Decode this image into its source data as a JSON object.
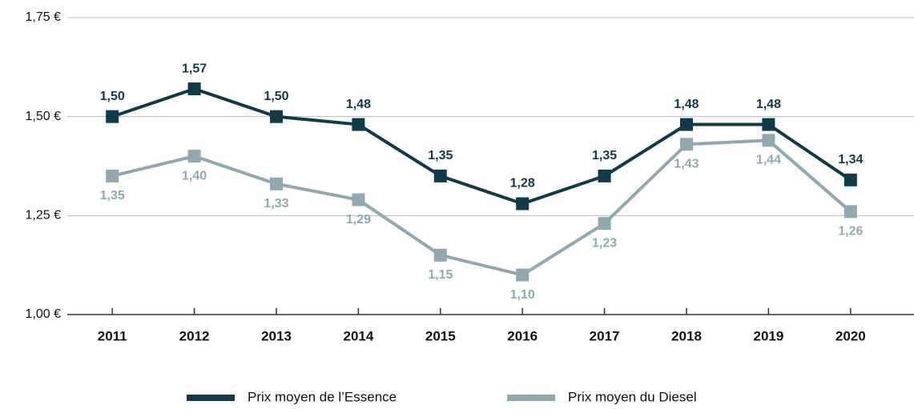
{
  "chart_data": {
    "type": "line",
    "categories": [
      "2011",
      "2012",
      "2013",
      "2014",
      "2015",
      "2016",
      "2017",
      "2018",
      "2019",
      "2020"
    ],
    "series": [
      {
        "name": "Prix moyen de l’Essence",
        "color": "#0d3b4a",
        "values": [
          1.5,
          1.57,
          1.5,
          1.48,
          1.35,
          1.28,
          1.35,
          1.48,
          1.48,
          1.34
        ],
        "value_labels": [
          "1,50",
          "1,57",
          "1,50",
          "1,48",
          "1,35",
          "1,28",
          "1,35",
          "1,48",
          "1,48",
          "1,34"
        ]
      },
      {
        "name": "Prix moyen du Diesel",
        "color": "#8fa9b3",
        "values": [
          1.35,
          1.4,
          1.33,
          1.29,
          1.15,
          1.1,
          1.23,
          1.43,
          1.44,
          1.26
        ],
        "value_labels": [
          "1,35",
          "1,40",
          "1,33",
          "1,29",
          "1,15",
          "1,10",
          "1,23",
          "1,43",
          "1,44",
          "1,26"
        ]
      }
    ],
    "ylim": [
      1.0,
      1.75
    ],
    "yticks": [
      {
        "value": 1.0,
        "label": "1,00 €"
      },
      {
        "value": 1.25,
        "label": "1,25 €"
      },
      {
        "value": 1.5,
        "label": "1,50 €"
      },
      {
        "value": 1.75,
        "label": "1,75 €"
      }
    ],
    "grid": true,
    "legend": "bottom"
  }
}
